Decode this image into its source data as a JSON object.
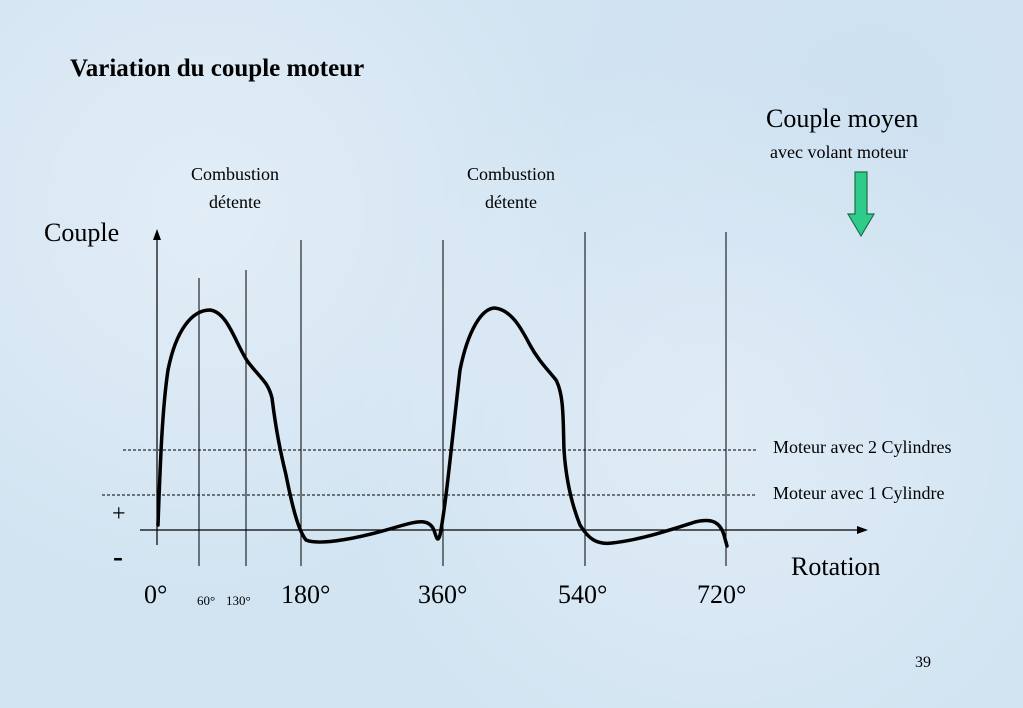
{
  "title": "Variation du couple moteur",
  "couple_moyen": {
    "title": "Couple moyen",
    "subtitle": "avec volant moteur",
    "arrow_color": "#2ecc8a"
  },
  "annotations": {
    "combustion_1": [
      "Combustion",
      "détente"
    ],
    "combustion_2": [
      "Combustion",
      "détente"
    ]
  },
  "axes": {
    "y_label": "Couple",
    "x_label": "Rotation",
    "plus": "+",
    "minus": "-"
  },
  "ticks": {
    "t0": "0°",
    "t60": "60°",
    "t130": "130°",
    "t180": "180°",
    "t360": "360°",
    "t540": "540°",
    "t720": "720°"
  },
  "legend": {
    "two_cyl": "Moteur avec 2 Cylindres",
    "one_cyl": "Moteur avec 1 Cylindre"
  },
  "page_number": "39"
}
